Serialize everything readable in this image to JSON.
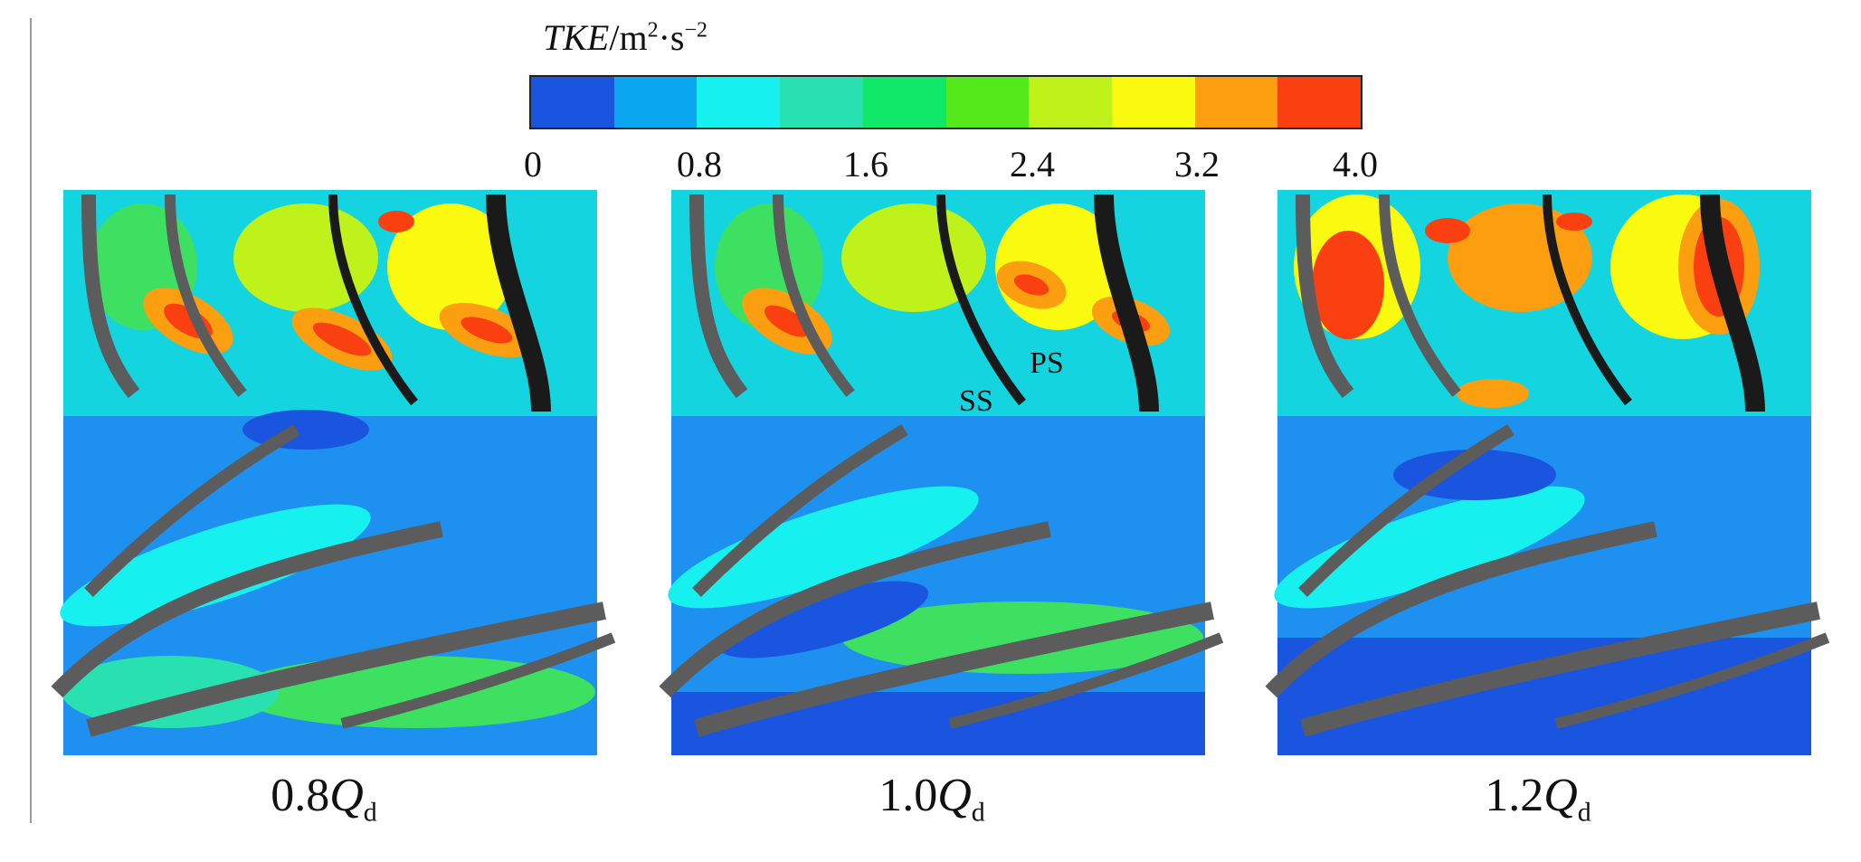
{
  "legend": {
    "title_var": "TKE",
    "title_unit_prefix": "/m",
    "title_unit_exp1": "2",
    "title_unit_mid": "·s",
    "title_unit_exp2": "−2",
    "bands": [
      "#1a55e0",
      "#0aa6f0",
      "#16f0ee",
      "#28e0b0",
      "#10e86a",
      "#55e81a",
      "#bff21a",
      "#fafa10",
      "#fb9f10",
      "#fa4010"
    ],
    "ticks": [
      "0",
      "0.8",
      "1.6",
      "2.4",
      "3.2",
      "4.0"
    ]
  },
  "panels": [
    {
      "caption_prefix": "0.8",
      "caption_var": "Q",
      "caption_sub": "d"
    },
    {
      "caption_prefix": "1.0",
      "caption_var": "Q",
      "caption_sub": "d"
    },
    {
      "caption_prefix": "1.2",
      "caption_var": "Q",
      "caption_sub": "d"
    }
  ],
  "annotations": {
    "ps": "PS",
    "ss": "SS"
  },
  "colors": {
    "blade": "#5c5c5c",
    "blade_dark": "#1a1a1a",
    "flow_base": "#1e90f0"
  }
}
